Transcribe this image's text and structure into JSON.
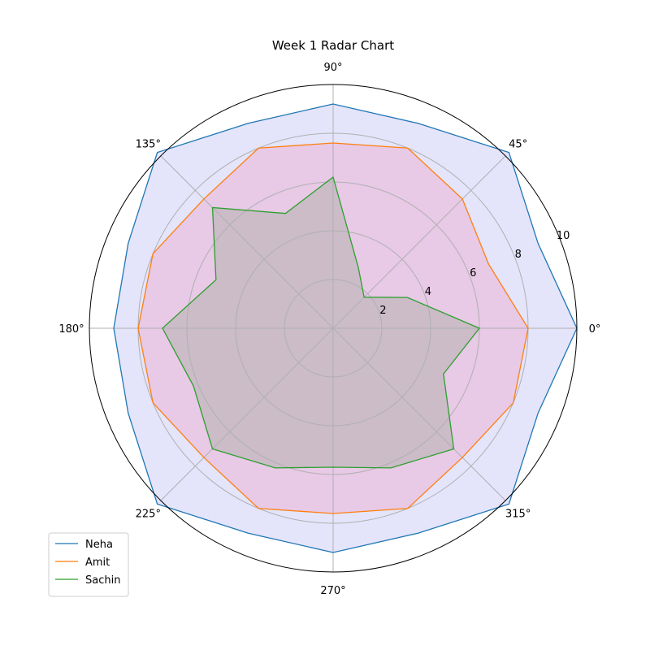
{
  "chart_data": {
    "type": "radar",
    "title": "Week 1 Radar Chart",
    "angles": [
      0,
      22.5,
      45,
      67.5,
      90,
      112.5,
      135,
      157.5,
      180,
      202.5,
      225,
      247.5,
      270,
      292.5,
      315,
      337.5
    ],
    "angle_tick_labels": [
      "0°",
      "45°",
      "90°",
      "135°",
      "180°",
      "225°",
      "270°",
      "315°"
    ],
    "angle_tick_values": [
      0,
      45,
      90,
      135,
      180,
      225,
      270,
      315
    ],
    "radial_ticks": [
      2,
      4,
      6,
      8,
      10
    ],
    "radial_tick_labels": [
      "2",
      "4",
      "6",
      "8",
      "10"
    ],
    "rlim": [
      0,
      10
    ],
    "grid": true,
    "legend_position": "bottom-left",
    "series": [
      {
        "name": "Neha",
        "color": "#1f77b4",
        "fill": "#e4e4fb",
        "values": [
          10,
          9.1,
          10.2,
          9.1,
          9.2,
          9.1,
          10.2,
          9.1,
          9,
          9.1,
          10.2,
          9.1,
          9.2,
          9.1,
          10.2,
          9.1
        ]
      },
      {
        "name": "Amit",
        "color": "#ff7f0e",
        "fill": "#e8c9e6",
        "values": [
          8,
          6.9,
          7.5,
          8,
          7.6,
          8,
          7.5,
          8,
          8,
          8,
          7.5,
          8,
          7.6,
          8,
          7.5,
          8
        ]
      },
      {
        "name": "Sachin",
        "color": "#2ca02c",
        "fill": "#cbbcc8",
        "values": [
          6,
          3.3,
          1.8,
          2.7,
          6.2,
          5.1,
          7,
          5.2,
          7,
          6.2,
          7,
          6.2,
          5.7,
          6.2,
          7,
          4.9
        ]
      }
    ]
  }
}
